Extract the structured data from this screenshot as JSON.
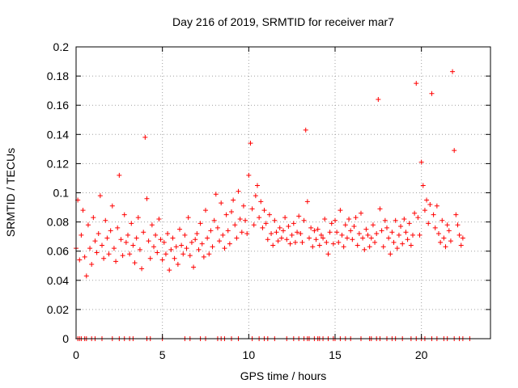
{
  "chart_data": {
    "type": "scatter",
    "title": "Day 216 of 2019, SRMTID for receiver mar7",
    "xlabel": "GPS time / hours",
    "ylabel": "SRMTID / TECUs",
    "xlim": [
      0,
      24
    ],
    "ylim": [
      0,
      0.2
    ],
    "xticks": [
      0,
      5,
      10,
      15,
      20
    ],
    "xtick_labels": [
      "0",
      "5",
      "10",
      "15",
      "20"
    ],
    "yticks": [
      0,
      0.02,
      0.04,
      0.06,
      0.08,
      0.1,
      0.12,
      0.14,
      0.16,
      0.18,
      0.2
    ],
    "ytick_labels": [
      "0",
      "0.02",
      "0.04",
      "0.06",
      "0.08",
      "0.1",
      "0.12",
      "0.14",
      "0.16",
      "0.18",
      "0.2"
    ],
    "grid": true,
    "marker": "+",
    "color": "#ff0000",
    "series": [
      {
        "name": "SRMTID",
        "x_start": 0.0,
        "x_step": 0.1,
        "values": [
          0.062,
          0.095,
          0.054,
          0.071,
          0.088,
          0.056,
          0.043,
          0.078,
          0.062,
          0.051,
          0.083,
          0.067,
          0.059,
          0.072,
          0.098,
          0.064,
          0.055,
          0.081,
          0.069,
          0.058,
          0.074,
          0.091,
          0.062,
          0.053,
          0.076,
          0.112,
          0.068,
          0.057,
          0.085,
          0.066,
          0.071,
          0.058,
          0.079,
          0.064,
          0.052,
          0.069,
          0.083,
          0.061,
          0.048,
          0.073,
          0.138,
          0.096,
          0.067,
          0.055,
          0.078,
          0.063,
          0.071,
          0.059,
          0.082,
          0.068,
          0.054,
          0.066,
          0.058,
          0.072,
          0.047,
          0.061,
          0.069,
          0.055,
          0.063,
          0.051,
          0.075,
          0.064,
          0.058,
          0.071,
          0.062,
          0.083,
          0.057,
          0.066,
          0.049,
          0.068,
          0.072,
          0.061,
          0.079,
          0.065,
          0.056,
          0.088,
          0.069,
          0.058,
          0.074,
          0.063,
          0.081,
          0.099,
          0.076,
          0.067,
          0.093,
          0.071,
          0.062,
          0.085,
          0.074,
          0.065,
          0.087,
          0.095,
          0.078,
          0.069,
          0.101,
          0.082,
          0.073,
          0.091,
          0.081,
          0.072,
          0.112,
          0.134,
          0.089,
          0.078,
          0.098,
          0.105,
          0.083,
          0.094,
          0.076,
          0.088,
          0.079,
          0.068,
          0.085,
          0.072,
          0.064,
          0.081,
          0.073,
          0.067,
          0.076,
          0.069,
          0.074,
          0.083,
          0.068,
          0.077,
          0.065,
          0.071,
          0.079,
          0.066,
          0.073,
          0.084,
          0.072,
          0.066,
          0.081,
          0.143,
          0.094,
          0.069,
          0.076,
          0.063,
          0.074,
          0.068,
          0.075,
          0.064,
          0.071,
          0.069,
          0.082,
          0.066,
          0.058,
          0.073,
          0.079,
          0.065,
          0.081,
          0.073,
          0.066,
          0.088,
          0.071,
          0.063,
          0.078,
          0.069,
          0.082,
          0.074,
          0.068,
          0.077,
          0.083,
          0.064,
          0.072,
          0.086,
          0.069,
          0.061,
          0.075,
          0.071,
          0.063,
          0.069,
          0.078,
          0.066,
          0.072,
          0.164,
          0.089,
          0.074,
          0.063,
          0.081,
          0.076,
          0.069,
          0.058,
          0.073,
          0.066,
          0.081,
          0.062,
          0.071,
          0.077,
          0.065,
          0.082,
          0.073,
          0.068,
          0.079,
          0.064,
          0.071,
          0.086,
          0.175,
          0.083,
          0.071,
          0.121,
          0.105,
          0.088,
          0.095,
          0.079,
          0.092,
          0.168,
          0.085,
          0.076,
          0.091,
          0.072,
          0.066,
          0.081,
          0.069,
          0.063,
          0.078,
          0.074,
          0.067,
          0.183,
          0.129,
          0.085,
          0.078,
          0.071,
          0.064,
          0.069
        ]
      }
    ],
    "zero_markers": [
      0.1,
      0.2,
      0.3,
      0.5,
      0.6,
      0.9,
      1.1,
      1.5,
      2.1,
      2.5,
      2.8,
      3.1,
      3.3,
      4.1,
      4.3,
      5.0,
      6.3,
      6.6,
      7.2,
      7.5,
      8.2,
      8.4,
      8.6,
      9.0,
      9.4,
      10.2,
      10.6,
      10.9,
      11.1,
      11.5,
      12.2,
      12.6,
      12.9,
      13.2,
      13.4,
      13.5,
      13.8,
      14.0,
      14.1,
      14.3,
      14.6,
      14.9,
      15.0,
      15.3,
      15.6,
      15.9,
      16.5,
      17.0,
      17.1,
      17.4,
      17.6,
      18.0,
      18.3,
      18.5,
      18.9,
      19.4,
      19.7,
      20.0,
      20.2,
      20.6,
      20.9,
      21.3,
      21.5,
      21.9,
      22.2,
      22.4,
      22.8
    ]
  }
}
